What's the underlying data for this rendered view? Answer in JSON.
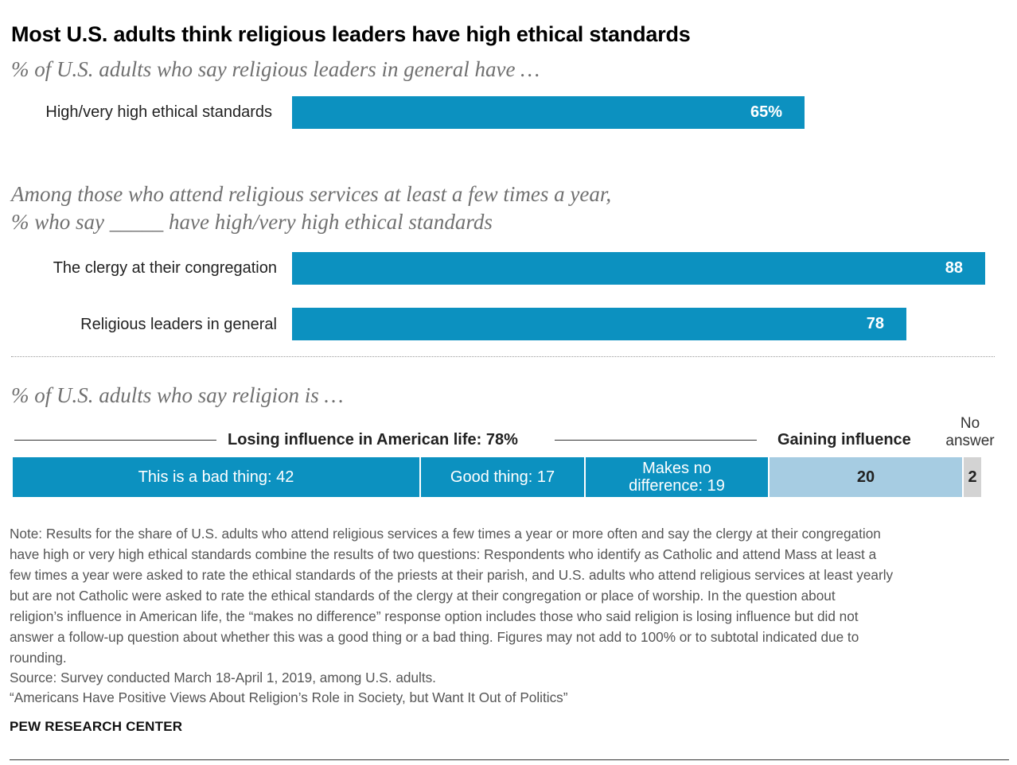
{
  "title": "Most U.S. adults think religious leaders have high ethical standards",
  "colors": {
    "primary": "#0c91c0",
    "secondary": "#a6cce2",
    "noanswer": "#d3d3d3"
  },
  "chart_data": [
    {
      "type": "bar",
      "subtitle": "% of U.S. adults who say religious leaders in general have …",
      "categories": [
        "High/very high ethical standards"
      ],
      "values": [
        65
      ],
      "value_labels": [
        "65%"
      ],
      "xlim": [
        0,
        100
      ]
    },
    {
      "type": "bar",
      "subtitle_lines": [
        "Among those who attend religious services at least a few times a year,",
        "% who say _____ have high/very high ethical standards"
      ],
      "categories": [
        "The clergy at their congregation",
        "Religious leaders in general"
      ],
      "values": [
        88,
        78
      ],
      "value_labels": [
        "88",
        "78"
      ],
      "xlim": [
        0,
        100
      ]
    },
    {
      "type": "bar",
      "orientation": "stacked-horizontal",
      "subtitle": "% of U.S. adults who say religion is …",
      "groups": {
        "losing": "Losing influence in American life: 78%",
        "gaining": "Gaining influence",
        "no_answer_lines": [
          "No",
          "answer"
        ]
      },
      "segments": [
        {
          "label": "This is a bad thing: 42",
          "value": 42
        },
        {
          "label": "Good thing: 17",
          "value": 17
        },
        {
          "label_lines": [
            "Makes no",
            "difference: 19"
          ],
          "value": 19
        },
        {
          "label": "20",
          "value": 20
        },
        {
          "label": "2",
          "value": 2
        }
      ]
    }
  ],
  "note_lines": [
    "Note: Results for the share of U.S. adults who attend religious services a few times a year or more often and say the clergy at their congregation",
    "have high or very high ethical standards combine the results of two questions: Respondents who identify as Catholic and attend Mass at least a",
    "few times a year were asked to rate the ethical standards of the priests at their parish, and U.S. adults who attend religious services at least yearly",
    "but are not Catholic were asked to rate the ethical standards of the clergy at their congregation or place of worship. In the question about",
    "religion’s influence in American life, the “makes no difference” response option includes those who said religion is losing influence but did not",
    "answer a follow-up question about whether this was a good thing or a bad thing. Figures may not add to 100% or to subtotal indicated due to",
    "rounding."
  ],
  "source": "Source: Survey conducted March 18-April 1, 2019, among U.S. adults.",
  "report": "“Americans Have Positive Views About Religion’s Role in Society, but Want It Out of Politics”",
  "brand": "PEW RESEARCH CENTER"
}
